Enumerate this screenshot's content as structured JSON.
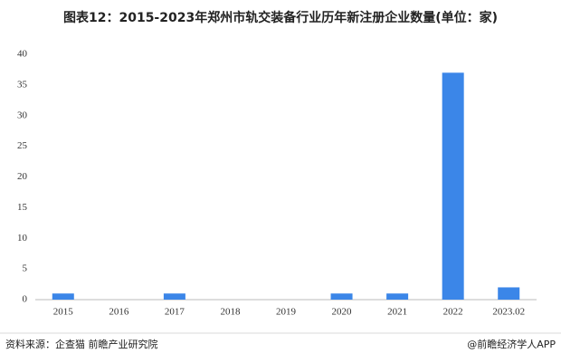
{
  "chart_data": {
    "type": "bar",
    "title": "图表12：2015-2023年郑州市轨交装备行业历年新注册企业数量(单位：家)",
    "categories": [
      "2015",
      "2016",
      "2017",
      "2018",
      "2019",
      "2020",
      "2021",
      "2022",
      "2023.02"
    ],
    "values": [
      1,
      0,
      1,
      0,
      0,
      1,
      1,
      37,
      2
    ],
    "color": "#3b86e8",
    "ylim": [
      0,
      40
    ],
    "yticks": [
      0,
      5,
      10,
      15,
      20,
      25,
      30,
      35,
      40
    ],
    "grid": false
  },
  "footer": {
    "source": "资料来源：企查猫 前瞻产业研究院",
    "credit": "@前瞻经济学人APP"
  }
}
